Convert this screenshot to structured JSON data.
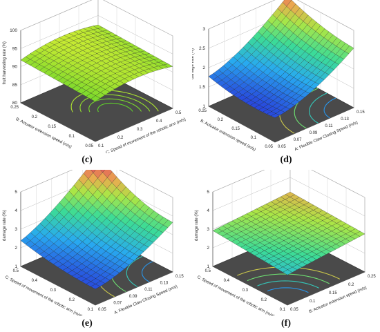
{
  "chart_data": [
    {
      "panel": "c",
      "type": "surface3d",
      "caption": "(c)",
      "zlabel": "fruit harvesting rate (%)",
      "xlabel": "C: Speed of movement of the robotic arm (m/s)",
      "ylabel": "B: Actuator extension speed (m/s)",
      "z_ticks": [
        "80",
        "85",
        "90",
        "95",
        "100"
      ],
      "x_ticks": [
        "0.1",
        "0.2",
        "0.3",
        "0.4",
        "0.5"
      ],
      "y_ticks": [
        "0.05",
        "0.1",
        "0.15",
        "0.2",
        "0.25"
      ],
      "zlim": [
        80,
        100
      ],
      "surface_range": [
        89.5,
        93.5
      ],
      "colormap": "green",
      "contours": "floor"
    },
    {
      "panel": "d",
      "type": "surface3d",
      "caption": "(d)",
      "zlabel": "damage rate (%)",
      "xlabel": "A: Flexible Claw Closing Speed (m/s)",
      "ylabel": "B: Actuator extension speed (m/s)",
      "z_ticks": [
        "1",
        "1.5",
        "2",
        "2.5",
        "3"
      ],
      "x_ticks": [
        "0.05",
        "0.07",
        "0.09",
        "0.11",
        "0.13",
        "0.15"
      ],
      "y_ticks": [
        "0.05",
        "0.1",
        "0.15",
        "0.2",
        "0.25"
      ],
      "zlim": [
        1,
        3
      ],
      "surface_range": [
        1.6,
        3.0
      ],
      "colormap": "jet",
      "contours": "floor"
    },
    {
      "panel": "e",
      "type": "surface3d",
      "caption": "(e)",
      "zlabel": "damage rate (%)",
      "xlabel": "A: Flexible Claw Closing Speed (m/s)",
      "ylabel": "C: Speed of movement of the robotic arm (m/s)",
      "z_ticks": [
        "1",
        "2",
        "3",
        "4",
        "5"
      ],
      "x_ticks": [
        "0.05",
        "0.07",
        "0.09",
        "0.11",
        "0.13",
        "0.15"
      ],
      "y_ticks": [
        "0.1",
        "0.2",
        "0.3",
        "0.4",
        "0.5"
      ],
      "zlim": [
        1,
        5
      ],
      "surface_range": [
        1.8,
        4.8
      ],
      "colormap": "jet",
      "contours": "floor"
    },
    {
      "panel": "f",
      "type": "surface3d",
      "caption": "(f)",
      "zlabel": "damage rate (%)",
      "xlabel": "B: Actuator extension speed (m/s)",
      "ylabel": "C: Speed of movement of the robotic arm (m/s)",
      "z_ticks": [
        "1",
        "2",
        "3",
        "4",
        "5"
      ],
      "x_ticks": [
        "0.05",
        "0.1",
        "0.15",
        "0.2",
        "0.25"
      ],
      "y_ticks": [
        "0.1",
        "0.2",
        "0.3",
        "0.4",
        "0.5"
      ],
      "zlim": [
        1,
        5
      ],
      "surface_range": [
        2.2,
        3.4
      ],
      "colormap": "jet",
      "contours": "floor"
    }
  ]
}
